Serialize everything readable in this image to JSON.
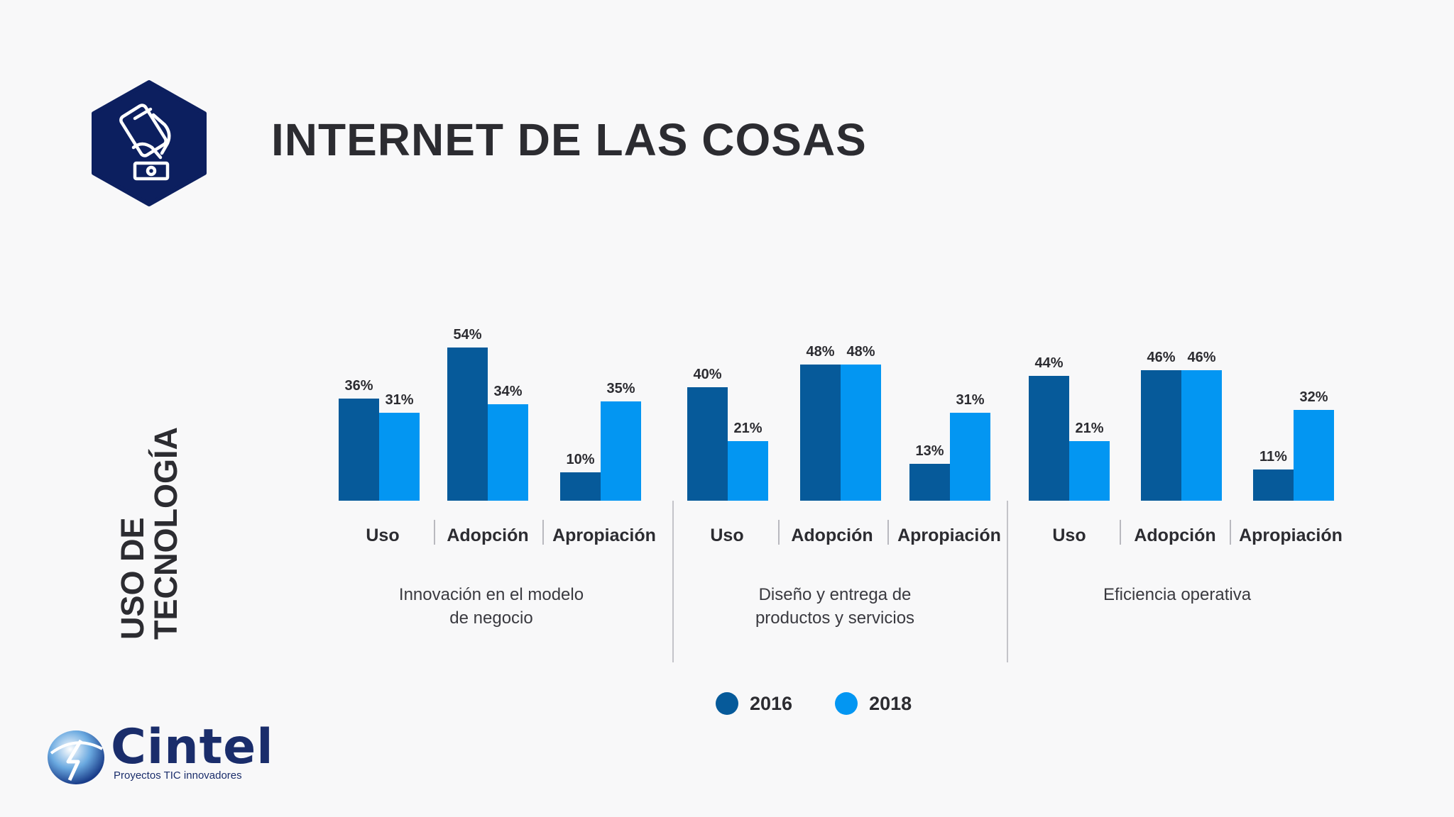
{
  "page": {
    "title": "INTERNET DE LAS COSAS",
    "side_title_line1": "USO DE",
    "side_title_line2": "TECNOLOGÍA"
  },
  "logo": {
    "name": "Cintel",
    "tagline": "Proyectos TIC innovadores"
  },
  "colors": {
    "series_2016": "#065a9a",
    "series_2018": "#0396f2",
    "hexagon": "#0c1f5f",
    "text": "#2c2c31"
  },
  "icon": "hand-holding-smartphone-icon",
  "chart_data": {
    "type": "bar",
    "legend_position": "bottom-center",
    "grid": false,
    "ylim": [
      0,
      60
    ],
    "series": [
      {
        "name": "2016",
        "values": [
          36,
          54,
          10,
          40,
          48,
          13,
          44,
          46,
          11
        ]
      },
      {
        "name": "2018",
        "values": [
          31,
          34,
          35,
          21,
          48,
          31,
          21,
          46,
          32
        ]
      }
    ],
    "categories": [
      "Uso",
      "Adopción",
      "Apropiación",
      "Uso",
      "Adopción",
      "Apropiación",
      "Uso",
      "Adopción",
      "Apropiación"
    ],
    "groups": [
      {
        "label_line1": "Innovación en el modelo",
        "label_line2": "de negocio"
      },
      {
        "label_line1": "Diseño y entrega de",
        "label_line2": "productos y servicios"
      },
      {
        "label_line1": "Eficiencia operativa",
        "label_line2": ""
      }
    ],
    "value_suffix": "%"
  }
}
